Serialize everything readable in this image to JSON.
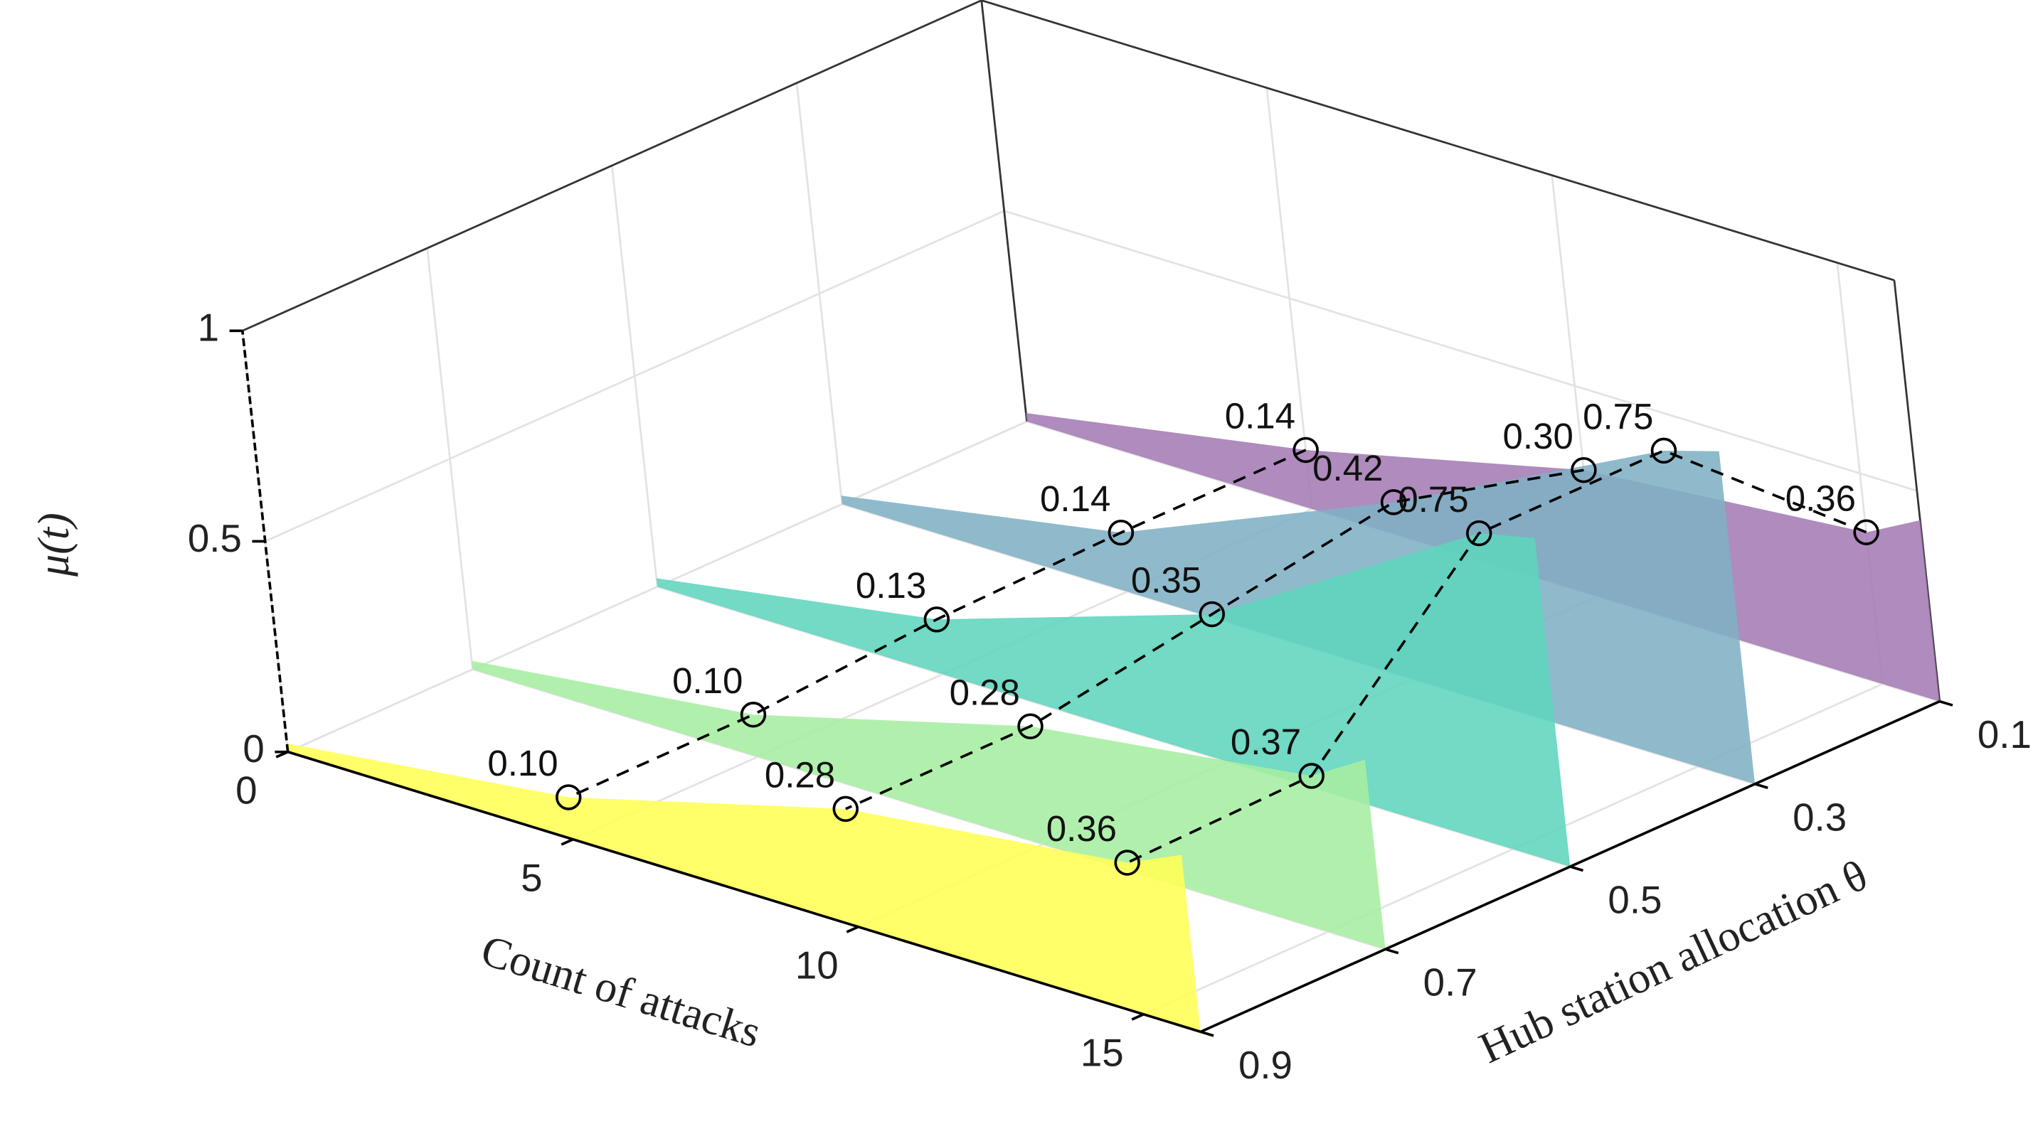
{
  "chart_data": {
    "type": "waterfall3d",
    "x_label": "Count of attacks",
    "y_label": "Hub station allocation θ",
    "z_label": "μ(t)",
    "xlim": [
      0,
      16
    ],
    "xticks": [
      0,
      5,
      10,
      15
    ],
    "ylim": [
      0.1,
      0.9
    ],
    "yticks": [
      0.1,
      0.3,
      0.5,
      0.7,
      0.9
    ],
    "zlim": [
      0,
      1
    ],
    "zticks": [
      0,
      0.5,
      1
    ],
    "grid": true,
    "x": [
      0,
      5,
      10,
      15,
      16
    ],
    "markers": [
      1,
      2,
      3
    ],
    "series": [
      {
        "y": 0.1,
        "color": "#a47bb5",
        "values": [
          0.02,
          0.14,
          0.3,
          0.36,
          0.43
        ],
        "value_labels": [
          null,
          "0.14",
          "0.30",
          "0.36",
          null
        ]
      },
      {
        "y": 0.3,
        "color": "#7fb0c4",
        "values": [
          0.02,
          0.14,
          0.42,
          0.75,
          0.79
        ],
        "value_labels": [
          null,
          "0.14",
          "0.42",
          "0.75",
          null
        ]
      },
      {
        "y": 0.5,
        "color": "#5fd5bd",
        "values": [
          0.02,
          0.13,
          0.35,
          0.75,
          0.78
        ],
        "value_labels": [
          null,
          "0.13",
          "0.35",
          "0.75",
          null
        ]
      },
      {
        "y": 0.7,
        "color": "#a6eea0",
        "values": [
          0.02,
          0.1,
          0.28,
          0.37,
          0.45
        ],
        "value_labels": [
          null,
          "0.10",
          "0.28",
          "0.37",
          null
        ]
      },
      {
        "y": 0.9,
        "color": "#ffff55",
        "values": [
          0.02,
          0.1,
          0.28,
          0.36,
          0.42
        ],
        "value_labels": [
          null,
          "0.10",
          "0.28",
          "0.36",
          null
        ]
      }
    ]
  }
}
